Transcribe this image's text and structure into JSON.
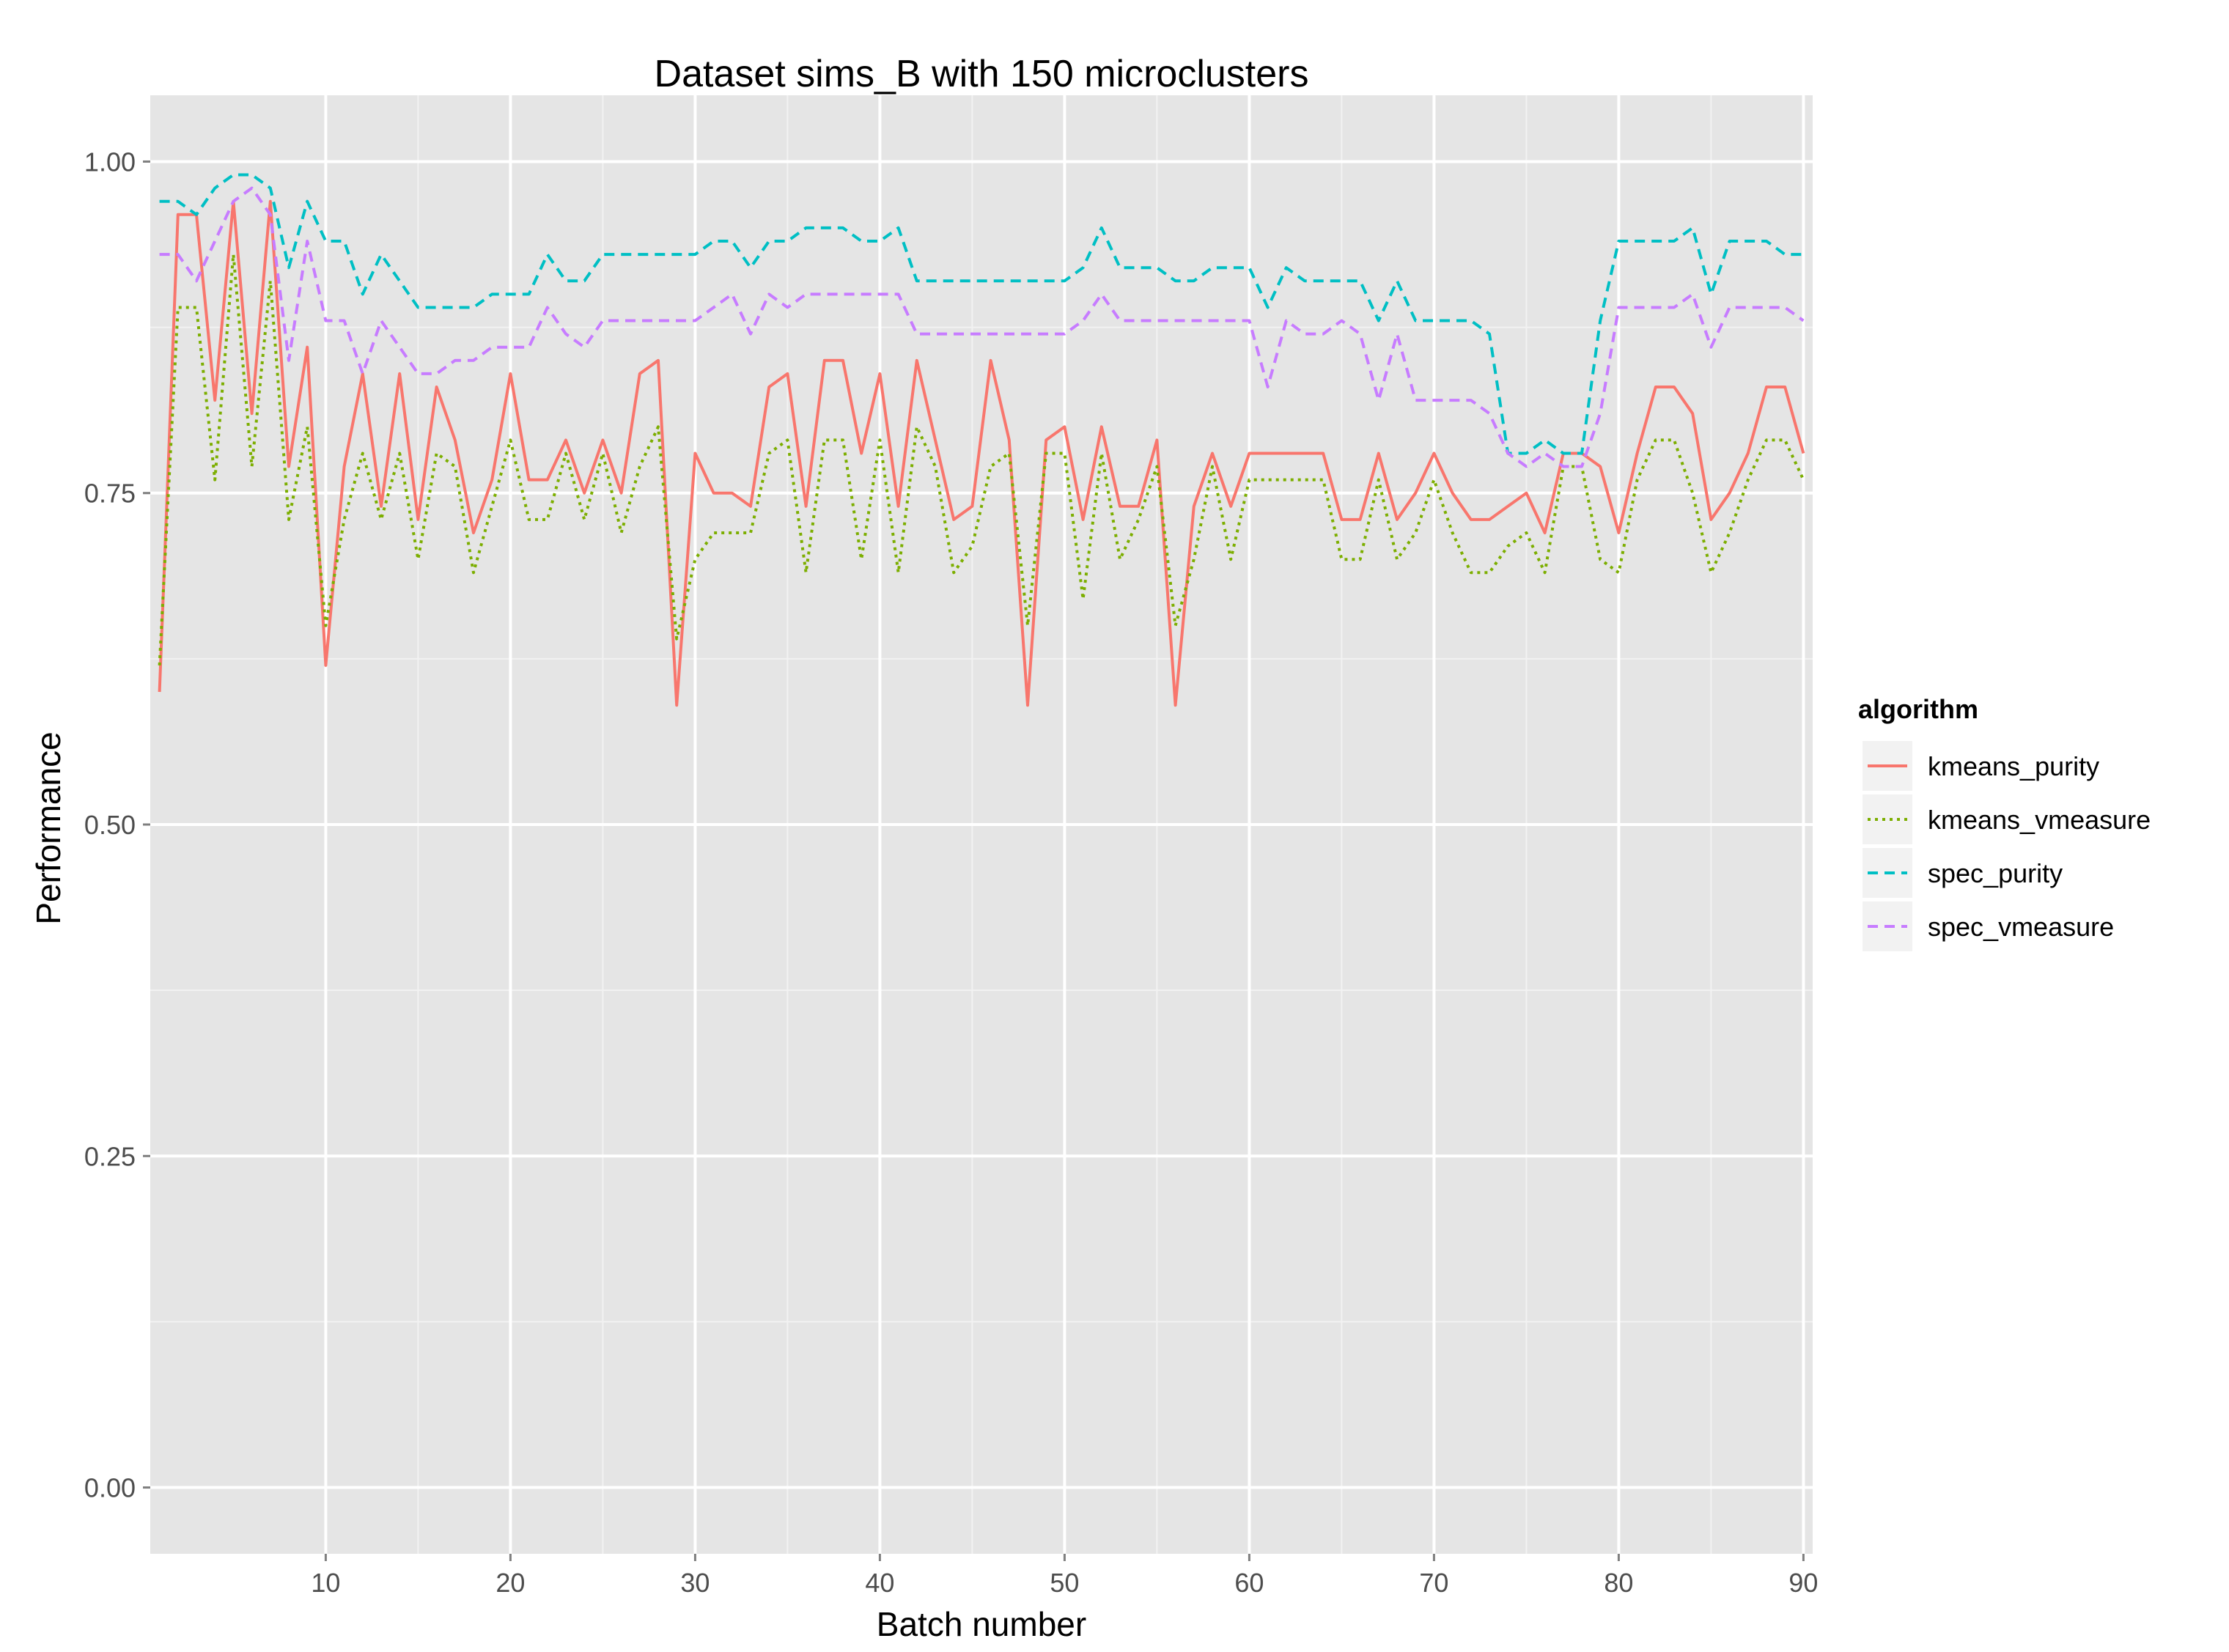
{
  "chart_data": {
    "type": "line",
    "title": "Dataset sims_B with 150 microclusters",
    "xlabel": "Batch number",
    "ylabel": "Performance",
    "xlim": [
      0.5,
      90.5
    ],
    "ylim": [
      -0.05,
      1.05
    ],
    "x_ticks": [
      10,
      20,
      30,
      40,
      50,
      60,
      70,
      80,
      90
    ],
    "x_tick_labels": [
      "10",
      "20",
      "30",
      "40",
      "50",
      "60",
      "70",
      "80",
      "90"
    ],
    "y_ticks": [
      0,
      0.25,
      0.5,
      0.75,
      1.0
    ],
    "y_tick_labels": [
      "0.00",
      "0.25",
      "0.50",
      "0.75",
      "1.00"
    ],
    "grid": true,
    "legend": {
      "title": "algorithm",
      "position": "right"
    },
    "x": [
      1,
      2,
      3,
      4,
      5,
      6,
      7,
      8,
      9,
      10,
      11,
      12,
      13,
      14,
      15,
      16,
      17,
      18,
      19,
      20,
      21,
      22,
      23,
      24,
      25,
      26,
      27,
      28,
      29,
      30,
      31,
      32,
      33,
      34,
      35,
      36,
      37,
      38,
      39,
      40,
      41,
      42,
      43,
      44,
      45,
      46,
      47,
      48,
      49,
      50,
      51,
      52,
      53,
      54,
      55,
      56,
      57,
      58,
      59,
      60,
      61,
      62,
      63,
      64,
      65,
      66,
      67,
      68,
      69,
      70,
      71,
      72,
      73,
      74,
      75,
      76,
      77,
      78,
      79,
      80,
      81,
      82,
      83,
      84,
      85,
      86,
      87,
      88,
      89,
      90
    ],
    "series": [
      {
        "name": "kmeans_purity",
        "color": "#F8766D",
        "dash": "solid",
        "values": [
          0.6,
          0.96,
          0.96,
          0.82,
          0.97,
          0.81,
          0.97,
          0.77,
          0.86,
          0.62,
          0.77,
          0.84,
          0.74,
          0.84,
          0.73,
          0.83,
          0.79,
          0.72,
          0.76,
          0.84,
          0.76,
          0.76,
          0.79,
          0.75,
          0.79,
          0.75,
          0.84,
          0.85,
          0.59,
          0.78,
          0.75,
          0.75,
          0.74,
          0.83,
          0.84,
          0.74,
          0.85,
          0.85,
          0.78,
          0.84,
          0.74,
          0.85,
          0.79,
          0.73,
          0.74,
          0.85,
          0.79,
          0.59,
          0.79,
          0.8,
          0.73,
          0.8,
          0.74,
          0.74,
          0.79,
          0.59,
          0.74,
          0.78,
          0.74,
          0.78,
          0.78,
          0.78,
          0.78,
          0.78,
          0.73,
          0.73,
          0.78,
          0.73,
          0.75,
          0.78,
          0.75,
          0.73,
          0.73,
          0.74,
          0.75,
          0.72,
          0.78,
          0.78,
          0.77,
          0.72,
          0.78,
          0.83,
          0.83,
          0.81,
          0.73,
          0.75,
          0.78,
          0.83,
          0.83,
          0.78
        ]
      },
      {
        "name": "kmeans_vmeasure",
        "color": "#7CAE00",
        "dash": "dotted",
        "values": [
          0.62,
          0.89,
          0.89,
          0.76,
          0.93,
          0.77,
          0.91,
          0.73,
          0.8,
          0.65,
          0.73,
          0.78,
          0.73,
          0.78,
          0.7,
          0.78,
          0.77,
          0.69,
          0.74,
          0.79,
          0.73,
          0.73,
          0.78,
          0.73,
          0.78,
          0.72,
          0.77,
          0.8,
          0.64,
          0.7,
          0.72,
          0.72,
          0.72,
          0.78,
          0.79,
          0.69,
          0.79,
          0.79,
          0.7,
          0.79,
          0.69,
          0.8,
          0.77,
          0.69,
          0.71,
          0.77,
          0.78,
          0.65,
          0.78,
          0.78,
          0.67,
          0.78,
          0.7,
          0.73,
          0.77,
          0.65,
          0.7,
          0.77,
          0.7,
          0.76,
          0.76,
          0.76,
          0.76,
          0.76,
          0.7,
          0.7,
          0.76,
          0.7,
          0.72,
          0.76,
          0.72,
          0.69,
          0.69,
          0.71,
          0.72,
          0.69,
          0.77,
          0.77,
          0.7,
          0.69,
          0.76,
          0.79,
          0.79,
          0.75,
          0.69,
          0.72,
          0.76,
          0.79,
          0.79,
          0.76
        ]
      },
      {
        "name": "spec_purity",
        "color": "#00BFC4",
        "dash": "dashed",
        "values": [
          0.97,
          0.97,
          0.96,
          0.98,
          0.99,
          0.99,
          0.98,
          0.92,
          0.97,
          0.94,
          0.94,
          0.9,
          0.93,
          0.91,
          0.89,
          0.89,
          0.89,
          0.89,
          0.9,
          0.9,
          0.9,
          0.93,
          0.91,
          0.91,
          0.93,
          0.93,
          0.93,
          0.93,
          0.93,
          0.93,
          0.94,
          0.94,
          0.92,
          0.94,
          0.94,
          0.95,
          0.95,
          0.95,
          0.94,
          0.94,
          0.95,
          0.91,
          0.91,
          0.91,
          0.91,
          0.91,
          0.91,
          0.91,
          0.91,
          0.91,
          0.92,
          0.95,
          0.92,
          0.92,
          0.92,
          0.91,
          0.91,
          0.92,
          0.92,
          0.92,
          0.89,
          0.92,
          0.91,
          0.91,
          0.91,
          0.91,
          0.88,
          0.91,
          0.88,
          0.88,
          0.88,
          0.88,
          0.87,
          0.78,
          0.78,
          0.79,
          0.78,
          0.78,
          0.88,
          0.94,
          0.94,
          0.94,
          0.94,
          0.95,
          0.9,
          0.94,
          0.94,
          0.94,
          0.93,
          0.93
        ]
      },
      {
        "name": "spec_vmeasure",
        "color": "#C77CFF",
        "dash": "dashed",
        "values": [
          0.93,
          0.93,
          0.91,
          0.94,
          0.97,
          0.98,
          0.96,
          0.85,
          0.94,
          0.88,
          0.88,
          0.84,
          0.88,
          0.86,
          0.84,
          0.84,
          0.85,
          0.85,
          0.86,
          0.86,
          0.86,
          0.89,
          0.87,
          0.86,
          0.88,
          0.88,
          0.88,
          0.88,
          0.88,
          0.88,
          0.89,
          0.9,
          0.87,
          0.9,
          0.89,
          0.9,
          0.9,
          0.9,
          0.9,
          0.9,
          0.9,
          0.87,
          0.87,
          0.87,
          0.87,
          0.87,
          0.87,
          0.87,
          0.87,
          0.87,
          0.88,
          0.9,
          0.88,
          0.88,
          0.88,
          0.88,
          0.88,
          0.88,
          0.88,
          0.88,
          0.83,
          0.88,
          0.87,
          0.87,
          0.88,
          0.87,
          0.82,
          0.87,
          0.82,
          0.82,
          0.82,
          0.82,
          0.81,
          0.78,
          0.77,
          0.78,
          0.77,
          0.77,
          0.81,
          0.89,
          0.89,
          0.89,
          0.89,
          0.9,
          0.86,
          0.89,
          0.89,
          0.89,
          0.89,
          0.88
        ]
      }
    ]
  }
}
